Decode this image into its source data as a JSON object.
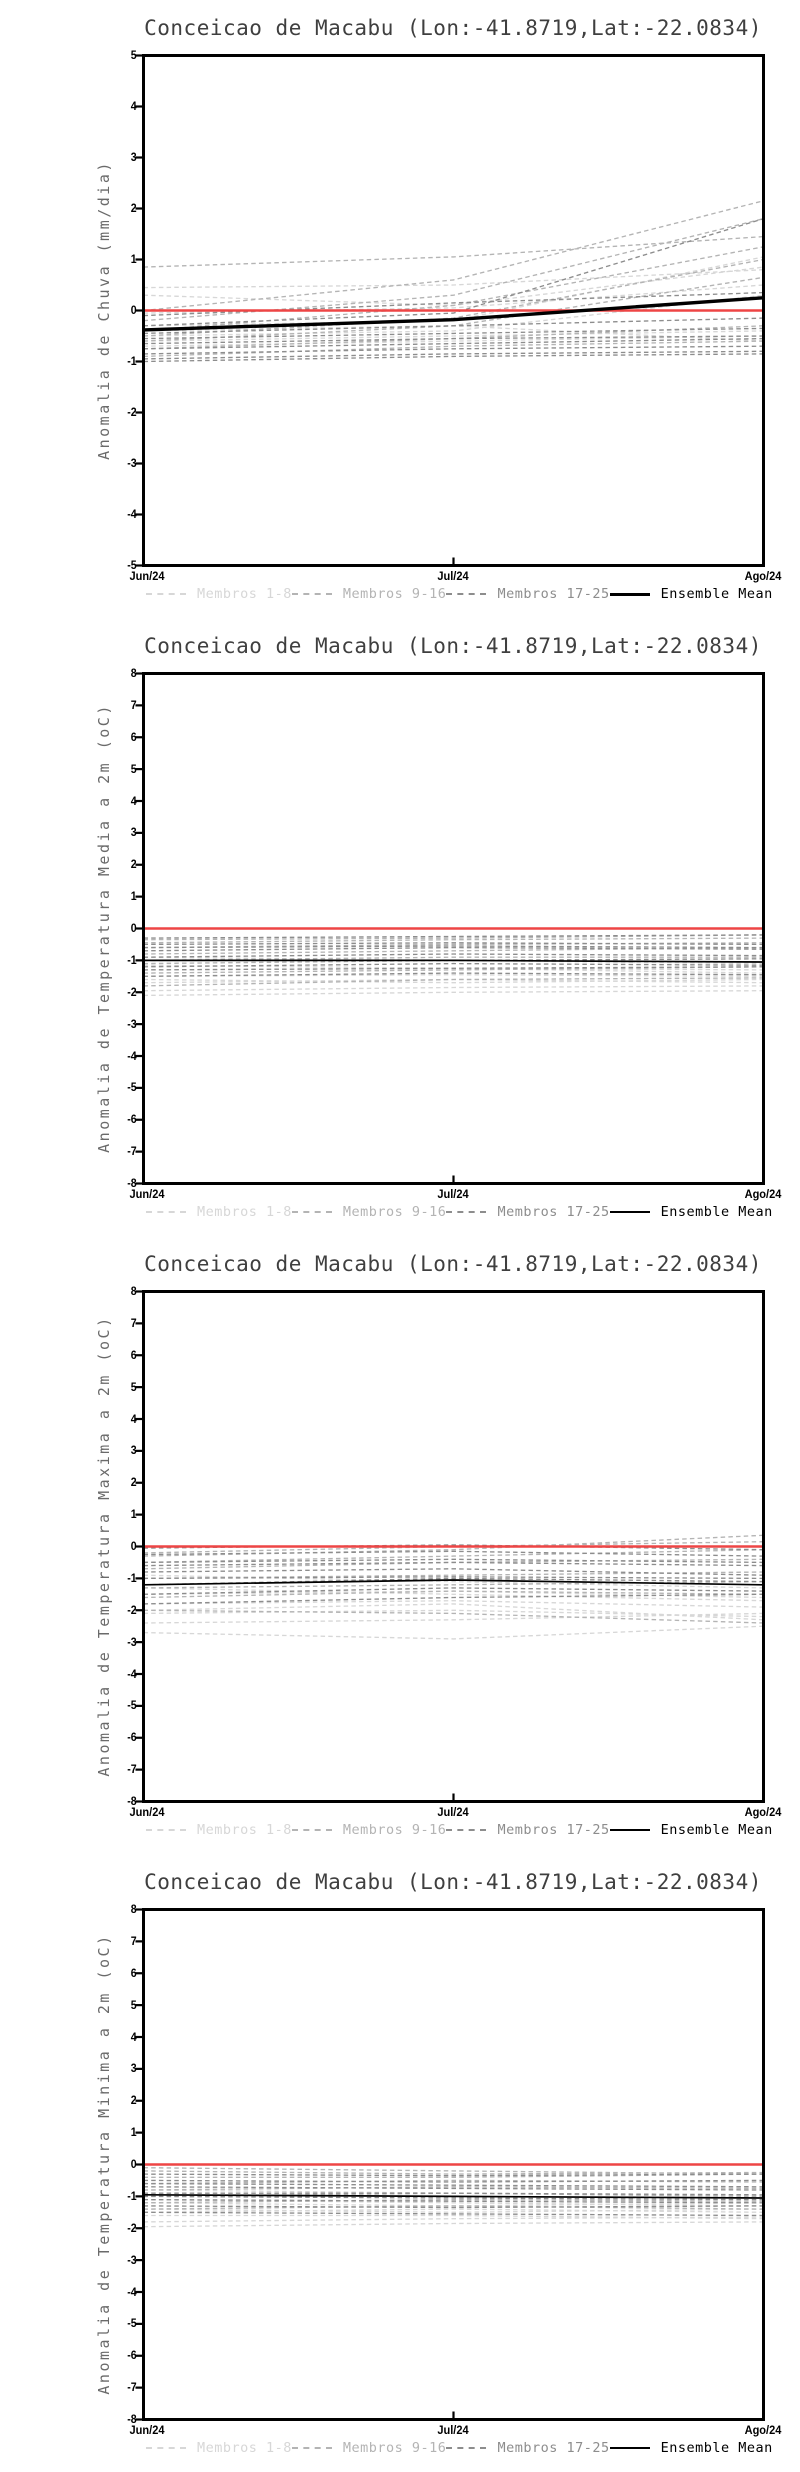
{
  "page": {
    "background": "#ffffff"
  },
  "colors": {
    "frame": "#000000",
    "title_text": "#3f3f3f",
    "axis_label_text": "#6a6a6a",
    "tick_text": "#000000",
    "zero_line": "#ee4545",
    "members_1_8": "#d7d7d7",
    "members_9_16": "#b4b4b4",
    "members_17_25": "#8d8d8d",
    "ensemble_mean": "#000000"
  },
  "chart_data": [
    {
      "type": "line",
      "title": "Conceicao de Macabu (Lon:-41.8719,Lat:-22.0834)",
      "ylabel": "Anomalia de Chuva (mm/dia)",
      "x_labels": [
        "Jun/24",
        "Jul/24",
        "Ago/24"
      ],
      "ylim": [
        -5,
        5
      ],
      "ytick_step": 1,
      "zero_line": 0,
      "grid": false,
      "legend_position": "bottom",
      "series": [
        {
          "name": "Membros 1-8",
          "style": "dashed",
          "color": "#d7d7d7",
          "width": 1.35,
          "members": [
            [
              0.3,
              0.1,
              0.85
            ],
            [
              -0.05,
              0.05,
              0.5
            ],
            [
              -0.3,
              -0.2,
              1.05
            ],
            [
              -0.5,
              -0.4,
              0.3
            ],
            [
              -0.6,
              -0.5,
              -0.4
            ],
            [
              -0.7,
              -0.6,
              -0.5
            ],
            [
              -0.4,
              -0.3,
              -0.6
            ],
            [
              0.45,
              0.5,
              0.8
            ]
          ]
        },
        {
          "name": "Membros 9-16",
          "style": "dashed",
          "color": "#b4b4b4",
          "width": 1.35,
          "members": [
            [
              0.85,
              1.05,
              1.45
            ],
            [
              0.0,
              0.6,
              2.15
            ],
            [
              -0.2,
              0.3,
              1.8
            ],
            [
              -0.4,
              0.1,
              1.25
            ],
            [
              -0.5,
              -0.15,
              1.0
            ],
            [
              -0.6,
              -0.3,
              0.65
            ],
            [
              -0.75,
              -0.55,
              -0.3
            ],
            [
              -0.9,
              -0.7,
              -0.6
            ]
          ]
        },
        {
          "name": "Membros 17-25",
          "style": "dashed",
          "color": "#8d8d8d",
          "width": 1.35,
          "members": [
            [
              -0.1,
              0.15,
              0.35
            ],
            [
              -0.3,
              -0.05,
              1.8
            ],
            [
              -0.45,
              -0.3,
              -0.15
            ],
            [
              -0.55,
              -0.45,
              -0.35
            ],
            [
              -0.65,
              -0.55,
              -0.5
            ],
            [
              -0.75,
              -0.65,
              -0.55
            ],
            [
              -0.85,
              -0.75,
              -0.7
            ],
            [
              -0.95,
              -0.85,
              -0.8
            ],
            [
              -1.0,
              -0.9,
              -0.85
            ]
          ]
        },
        {
          "name": "Ensemble Mean",
          "style": "solid",
          "color": "#000000",
          "width": 3.4,
          "members": [
            [
              -0.38,
              -0.18,
              0.25
            ]
          ]
        }
      ]
    },
    {
      "type": "line",
      "title": "Conceicao de Macabu (Lon:-41.8719,Lat:-22.0834)",
      "ylabel": "Anomalia de Temperatura Media a 2m (oC)",
      "x_labels": [
        "Jun/24",
        "Jul/24",
        "Ago/24"
      ],
      "ylim": [
        -8,
        8
      ],
      "ytick_step": 1,
      "zero_line": 0,
      "grid": false,
      "legend_position": "bottom",
      "series": [
        {
          "name": "Membros 1-8",
          "style": "dashed",
          "color": "#d7d7d7",
          "width": 1.35,
          "members": [
            [
              -1.3,
              -1.25,
              -1.3
            ],
            [
              -1.5,
              -1.45,
              -1.5
            ],
            [
              -1.7,
              -1.6,
              -1.7
            ],
            [
              -1.95,
              -1.85,
              -1.8
            ],
            [
              -2.1,
              -2.0,
              -1.95
            ],
            [
              -1.15,
              -1.25,
              -1.4
            ],
            [
              -0.9,
              -1.0,
              -1.1
            ],
            [
              -1.6,
              -1.7,
              -1.6
            ]
          ]
        },
        {
          "name": "Membros 9-16",
          "style": "dashed",
          "color": "#b4b4b4",
          "width": 1.35,
          "members": [
            [
              -0.45,
              -0.35,
              -0.3
            ],
            [
              -0.6,
              -0.5,
              -0.45
            ],
            [
              -0.8,
              -0.7,
              -0.6
            ],
            [
              -1.0,
              -0.9,
              -0.9
            ],
            [
              -1.1,
              -1.0,
              -1.05
            ],
            [
              -1.4,
              -1.3,
              -1.2
            ],
            [
              -1.8,
              -1.6,
              -1.55
            ],
            [
              -0.35,
              -0.3,
              -0.2
            ]
          ]
        },
        {
          "name": "Membros 17-25",
          "style": "dashed",
          "color": "#8d8d8d",
          "width": 1.35,
          "members": [
            [
              -0.3,
              -0.25,
              -0.2
            ],
            [
              -0.5,
              -0.45,
              -0.5
            ],
            [
              -0.7,
              -0.6,
              -0.65
            ],
            [
              -0.9,
              -0.8,
              -0.85
            ],
            [
              -1.0,
              -1.0,
              -0.95
            ],
            [
              -1.2,
              -1.1,
              -1.15
            ],
            [
              -1.3,
              -1.25,
              -1.2
            ],
            [
              -1.5,
              -1.4,
              -1.45
            ],
            [
              -0.6,
              -0.55,
              -0.6
            ]
          ]
        },
        {
          "name": "Ensemble Mean",
          "style": "solid",
          "color": "#000000",
          "width": 1.7,
          "members": [
            [
              -1.0,
              -1.0,
              -1.05
            ]
          ]
        }
      ]
    },
    {
      "type": "line",
      "title": "Conceicao de Macabu (Lon:-41.8719,Lat:-22.0834)",
      "ylabel": "Anomalia de Temperatura Maxima a 2m (oC)",
      "x_labels": [
        "Jun/24",
        "Jul/24",
        "Ago/24"
      ],
      "ylim": [
        -8,
        8
      ],
      "ytick_step": 1,
      "zero_line": 0,
      "grid": false,
      "legend_position": "bottom",
      "series": [
        {
          "name": "Membros 1-8",
          "style": "dashed",
          "color": "#d7d7d7",
          "width": 1.35,
          "members": [
            [
              -1.5,
              -1.4,
              -1.6
            ],
            [
              -1.8,
              -1.7,
              -1.9
            ],
            [
              -2.1,
              -2.0,
              -2.2
            ],
            [
              -2.4,
              -2.3,
              -2.1
            ],
            [
              -2.7,
              -2.9,
              -2.5
            ],
            [
              -1.3,
              -1.5,
              -1.7
            ],
            [
              -0.9,
              -1.1,
              -1.3
            ],
            [
              -2.0,
              -1.8,
              -2.3
            ]
          ]
        },
        {
          "name": "Membros 9-16",
          "style": "dashed",
          "color": "#b4b4b4",
          "width": 1.35,
          "members": [
            [
              -0.3,
              -0.1,
              0.35
            ],
            [
              -0.5,
              -0.3,
              -0.1
            ],
            [
              -0.7,
              -0.5,
              -0.4
            ],
            [
              -1.0,
              -0.9,
              -0.8
            ],
            [
              -1.3,
              -1.2,
              -1.1
            ],
            [
              -1.6,
              -1.4,
              -1.5
            ],
            [
              -2.0,
              -2.1,
              -2.4
            ],
            [
              -0.2,
              0.0,
              0.15
            ]
          ]
        },
        {
          "name": "Membros 17-25",
          "style": "dashed",
          "color": "#8d8d8d",
          "width": 1.35,
          "members": [
            [
              -0.05,
              0.05,
              -0.1
            ],
            [
              -0.25,
              -0.15,
              -0.3
            ],
            [
              -0.5,
              -0.4,
              -0.5
            ],
            [
              -0.8,
              -0.7,
              -0.9
            ],
            [
              -1.0,
              -0.95,
              -1.0
            ],
            [
              -1.2,
              -1.0,
              -1.1
            ],
            [
              -1.5,
              -1.3,
              -1.4
            ],
            [
              -1.8,
              -1.6,
              -1.5
            ],
            [
              -0.6,
              -0.5,
              -0.6
            ]
          ]
        },
        {
          "name": "Ensemble Mean",
          "style": "solid",
          "color": "#000000",
          "width": 1.7,
          "members": [
            [
              -1.2,
              -1.05,
              -1.2
            ]
          ]
        }
      ]
    },
    {
      "type": "line",
      "title": "Conceicao de Macabu (Lon:-41.8719,Lat:-22.0834)",
      "ylabel": "Anomalia de Temperatura Minima a 2m (oC)",
      "x_labels": [
        "Jun/24",
        "Jul/24",
        "Ago/24"
      ],
      "ylim": [
        -8,
        8
      ],
      "ytick_step": 1,
      "zero_line": 0,
      "grid": false,
      "legend_position": "bottom",
      "series": [
        {
          "name": "Membros 1-8",
          "style": "dashed",
          "color": "#d7d7d7",
          "width": 1.35,
          "members": [
            [
              -1.2,
              -1.3,
              -1.2
            ],
            [
              -1.4,
              -1.5,
              -1.4
            ],
            [
              -1.6,
              -1.6,
              -1.7
            ],
            [
              -1.8,
              -1.7,
              -1.65
            ],
            [
              -1.95,
              -1.85,
              -1.8
            ],
            [
              -1.1,
              -1.2,
              -1.3
            ],
            [
              -0.8,
              -0.9,
              -1.0
            ],
            [
              -1.5,
              -1.4,
              -1.5
            ]
          ]
        },
        {
          "name": "Membros 9-16",
          "style": "dashed",
          "color": "#b4b4b4",
          "width": 1.35,
          "members": [
            [
              -0.2,
              -0.3,
              -0.25
            ],
            [
              -0.4,
              -0.4,
              -0.3
            ],
            [
              -0.6,
              -0.5,
              -0.55
            ],
            [
              -0.8,
              -0.7,
              -0.75
            ],
            [
              -1.0,
              -0.9,
              -1.0
            ],
            [
              -1.2,
              -1.1,
              -1.15
            ],
            [
              -1.4,
              -1.3,
              -1.4
            ],
            [
              -0.1,
              -0.2,
              -0.3
            ]
          ]
        },
        {
          "name": "Membros 17-25",
          "style": "dashed",
          "color": "#8d8d8d",
          "width": 1.35,
          "members": [
            [
              -0.3,
              -0.35,
              -0.3
            ],
            [
              -0.5,
              -0.55,
              -0.5
            ],
            [
              -0.7,
              -0.75,
              -0.8
            ],
            [
              -0.9,
              -0.9,
              -0.95
            ],
            [
              -1.0,
              -1.05,
              -1.1
            ],
            [
              -1.1,
              -1.15,
              -1.2
            ],
            [
              -1.3,
              -1.35,
              -1.3
            ],
            [
              -1.5,
              -1.55,
              -1.6
            ],
            [
              -0.6,
              -0.65,
              -0.7
            ]
          ]
        },
        {
          "name": "Ensemble Mean",
          "style": "solid",
          "color": "#000000",
          "width": 1.7,
          "members": [
            [
              -0.95,
              -1.0,
              -1.05
            ]
          ]
        }
      ]
    }
  ]
}
